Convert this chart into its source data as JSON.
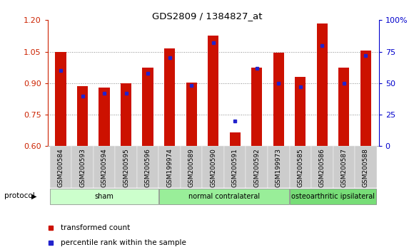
{
  "title": "GDS2809 / 1384827_at",
  "samples": [
    "GSM200584",
    "GSM200593",
    "GSM200594",
    "GSM200595",
    "GSM200596",
    "GSM199974",
    "GSM200589",
    "GSM200590",
    "GSM200591",
    "GSM200592",
    "GSM199973",
    "GSM200585",
    "GSM200586",
    "GSM200587",
    "GSM200588"
  ],
  "red_values": [
    1.048,
    0.885,
    0.88,
    0.898,
    0.975,
    1.065,
    0.903,
    1.125,
    0.665,
    0.975,
    1.045,
    0.93,
    1.185,
    0.975,
    1.055
  ],
  "blue_pct": [
    60,
    40,
    42,
    42,
    58,
    70,
    48,
    82,
    20,
    62,
    50,
    47,
    80,
    50,
    72
  ],
  "groups": [
    {
      "label": "sham",
      "start": 0,
      "end": 5,
      "color": "#ccffcc"
    },
    {
      "label": "normal contralateral",
      "start": 5,
      "end": 11,
      "color": "#99ee99"
    },
    {
      "label": "osteoarthritic ipsilateral",
      "start": 11,
      "end": 15,
      "color": "#77dd77"
    }
  ],
  "ylim_left": [
    0.6,
    1.2
  ],
  "ylim_right": [
    0,
    100
  ],
  "yticks_left": [
    0.6,
    0.75,
    0.9,
    1.05,
    1.2
  ],
  "yticks_right": [
    0,
    25,
    50,
    75,
    100
  ],
  "bar_bottom": 0.6,
  "bar_width": 0.5,
  "red_color": "#cc1100",
  "blue_color": "#2222cc",
  "grid_color": "#888888",
  "tick_bg_color": "#cccccc",
  "legend_red": "transformed count",
  "legend_blue": "percentile rank within the sample",
  "protocol_label": "protocol",
  "ylabel_left_color": "#cc2200",
  "ylabel_right_color": "#0000cc"
}
